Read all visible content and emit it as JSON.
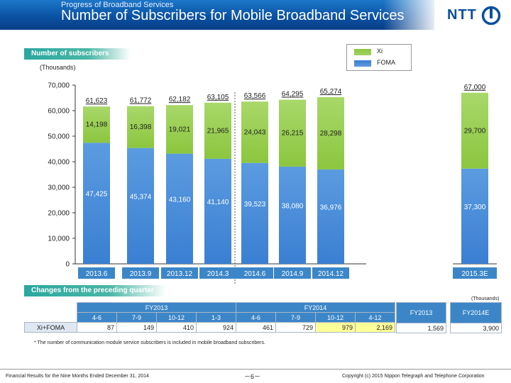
{
  "header": {
    "kicker": "Progress of Broadband Services",
    "title": "Number of Subscribers for Mobile Broadband Services",
    "logo_text": "NTT"
  },
  "colors": {
    "xi": "#8cc63f",
    "foma": "#3a7fd2",
    "header": "#0a4fa0",
    "label_bar": "#2aa7a0",
    "highlight": "#ffff99"
  },
  "section_labels": {
    "subscribers": "Number of subscribers",
    "changes": "Changes from the preceding quarter"
  },
  "units": {
    "left": "(Thousands)",
    "right": "(Thousands)"
  },
  "legend": [
    {
      "label": "Xi",
      "color": "#8cc63f"
    },
    {
      "label": "FOMA",
      "color": "#3a7fd2"
    }
  ],
  "chart_data": {
    "type": "bar",
    "stacked": true,
    "categories": [
      "2013.6",
      "2013.9",
      "2013.12",
      "2014.3",
      "2014.6",
      "2014.9",
      "2014.12",
      "2015.3E"
    ],
    "series": [
      {
        "name": "FOMA",
        "values": [
          47425,
          45374,
          43160,
          41140,
          39523,
          38080,
          36976,
          37300
        ],
        "labels": [
          "47,425",
          "45,374",
          "43,160",
          "41,140",
          "39,523",
          "38,080",
          "36,976",
          "37,300"
        ]
      },
      {
        "name": "Xi",
        "values": [
          14198,
          16398,
          19021,
          21965,
          24043,
          26215,
          28298,
          29700
        ],
        "labels": [
          "14,198",
          "16,398",
          "19,021",
          "21,965",
          "24,043",
          "26,215",
          "28,298",
          "29,700"
        ]
      }
    ],
    "totals": [
      "61,623",
      "61,772",
      "62,182",
      "63,105",
      "63,566",
      "64,295",
      "65,274",
      "67,000"
    ],
    "ylim": [
      0,
      70000
    ],
    "yticks": [
      "0",
      "10,000",
      "20,000",
      "30,000",
      "40,000",
      "50,000",
      "60,000",
      "70,000"
    ],
    "ylabel": "(Thousands)",
    "grid": false,
    "legend_position": "top-right"
  },
  "changes_table": {
    "fy2013": "FY2013",
    "fy2014": "FY2014",
    "quarters": [
      "4-6",
      "7-9",
      "10-12",
      "1-3",
      "4-6",
      "7-9",
      "10-12",
      "4-12"
    ],
    "row_label": "Xi+FOMA",
    "values": [
      "87",
      "149",
      "410",
      "924",
      "461",
      "729",
      "979",
      "2,169"
    ],
    "highlighted": [
      6,
      7
    ],
    "side1_header": "FY2013",
    "side1_value": "1,569",
    "side2_header": "FY2014E",
    "side2_value": "3,900"
  },
  "footnote": "* The number of communication module service subscribers is included in mobile broadband subscribers.",
  "footer": {
    "left": "Financial Results for the Nine Months Ended December 31, 2014",
    "page": "－6－",
    "right": "Copyright (c) 2015  Nippon Telegraph and Telephone Corporation"
  }
}
